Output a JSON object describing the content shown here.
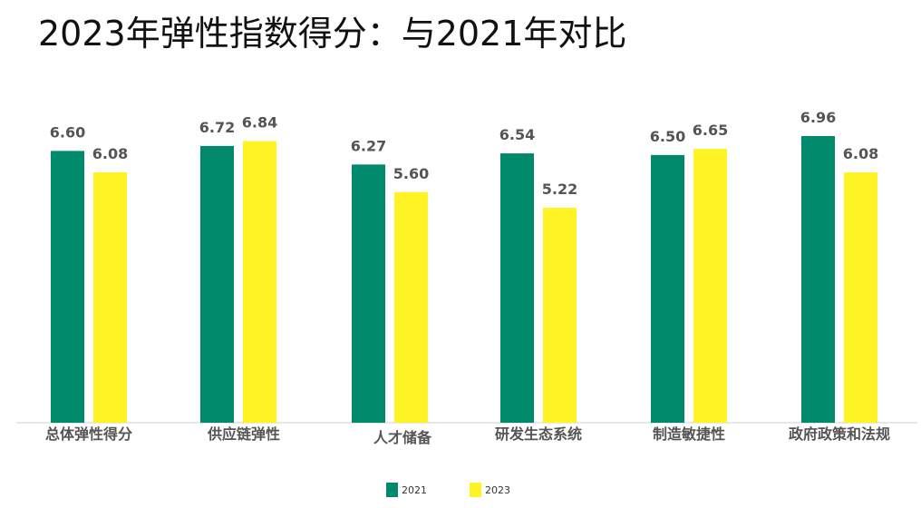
{
  "title": "2023年弹性指数得分：与2021年对比",
  "chart_data": {
    "type": "bar",
    "categories": [
      "总体弹性得分",
      "供应链弹性",
      "人才储备",
      "研发生态系统",
      "制造敏捷性",
      "政府政策和法规"
    ],
    "series": [
      {
        "name": "2021",
        "values": [
          6.6,
          6.72,
          6.27,
          6.54,
          6.5,
          6.96
        ],
        "color": "#00896b"
      },
      {
        "name": "2023",
        "values": [
          6.08,
          6.84,
          5.6,
          5.22,
          6.65,
          6.08
        ],
        "color": "#fff326"
      }
    ],
    "ylim": [
      0,
      8.5
    ],
    "grid": false,
    "legend": "bottom",
    "xlabel": "",
    "ylabel": ""
  }
}
